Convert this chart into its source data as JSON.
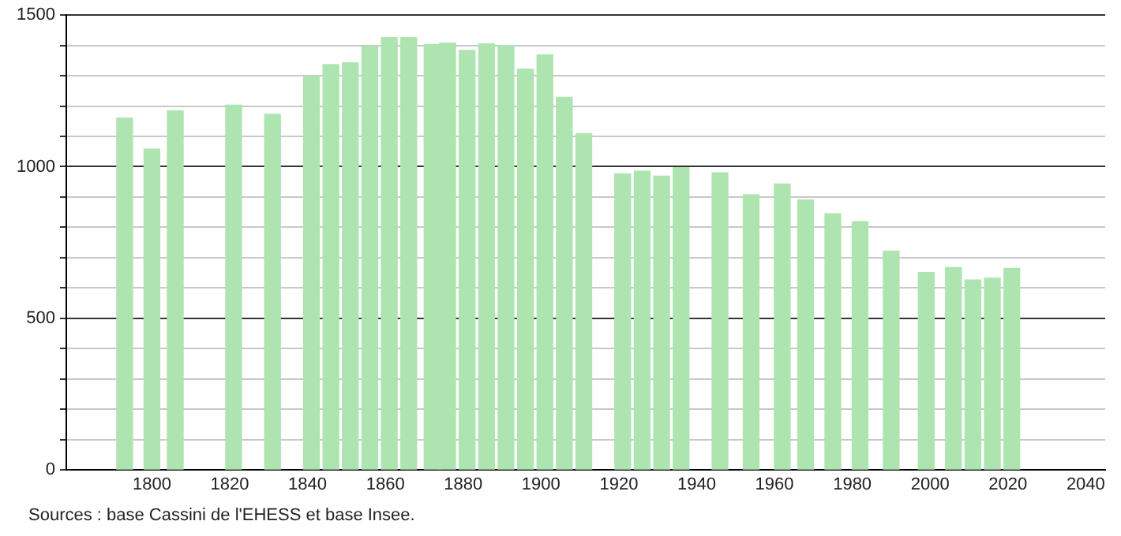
{
  "chart_data": {
    "type": "bar",
    "x": [
      1793,
      1800,
      1806,
      1821,
      1831,
      1841,
      1846,
      1851,
      1856,
      1861,
      1866,
      1872,
      1876,
      1881,
      1886,
      1891,
      1896,
      1901,
      1906,
      1911,
      1921,
      1926,
      1931,
      1936,
      1946,
      1954,
      1962,
      1968,
      1975,
      1982,
      1990,
      1999,
      2006,
      2011,
      2016,
      2021
    ],
    "values": [
      1160,
      1058,
      1184,
      1203,
      1173,
      1298,
      1337,
      1343,
      1396,
      1426,
      1426,
      1403,
      1408,
      1384,
      1405,
      1400,
      1322,
      1369,
      1229,
      1109,
      976,
      985,
      969,
      997,
      980,
      907,
      943,
      890,
      845,
      819,
      721,
      651,
      667,
      626,
      632,
      665
    ],
    "color": "#ade4b0",
    "xlim": [
      1778,
      2045
    ],
    "xticks": [
      1800,
      1820,
      1840,
      1860,
      1880,
      1900,
      1920,
      1940,
      1960,
      1980,
      2000,
      2020,
      2040
    ],
    "ylim": [
      0,
      1500
    ],
    "yticks": [
      0,
      {
        "value": 100,
        "label": null
      },
      {
        "value": 200,
        "label": null
      },
      {
        "value": 300,
        "label": null
      },
      {
        "value": 400,
        "label": null
      },
      500,
      {
        "value": 600,
        "label": null
      },
      {
        "value": 700,
        "label": null
      },
      {
        "value": 800,
        "label": null
      },
      {
        "value": 900,
        "label": null
      },
      1000,
      {
        "value": 1100,
        "label": null
      },
      {
        "value": 1200,
        "label": null
      },
      {
        "value": 1300,
        "label": null
      },
      {
        "value": 1400,
        "label": null
      },
      1500
    ],
    "grid": "y",
    "annotations": [
      "Sources : base Cassini de l'EHESS et base Insee."
    ]
  }
}
